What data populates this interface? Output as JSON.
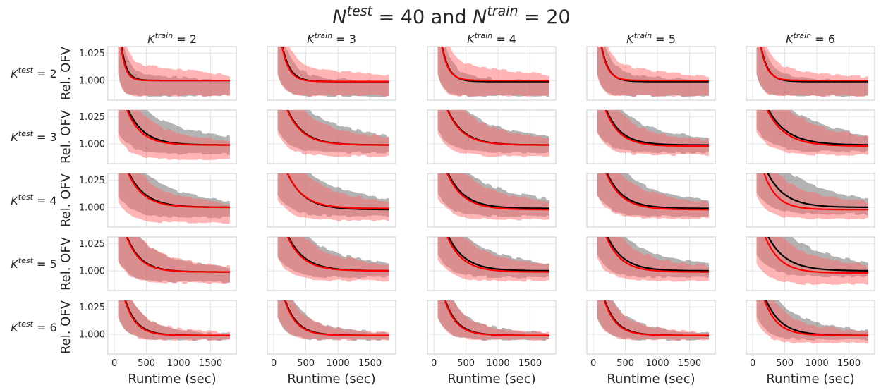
{
  "figure": {
    "suptitle_parts": [
      {
        "t": "N",
        "style": "italic"
      },
      {
        "t": "test",
        "sup": true,
        "style": "italic"
      },
      {
        "t": " = 40 and "
      },
      {
        "t": "N",
        "style": "italic"
      },
      {
        "t": "train",
        "sup": true,
        "style": "italic"
      },
      {
        "t": " = 20"
      }
    ]
  },
  "chart_data": {
    "type": "line",
    "layout": "grid 5x5 of small multiples, shared x and y axes",
    "columns": [
      {
        "base": "K",
        "sup": "train",
        "value": "= 2"
      },
      {
        "base": "K",
        "sup": "train",
        "value": "= 3"
      },
      {
        "base": "K",
        "sup": "train",
        "value": "= 4"
      },
      {
        "base": "K",
        "sup": "train",
        "value": "= 5"
      },
      {
        "base": "K",
        "sup": "train",
        "value": "= 6"
      }
    ],
    "rows": [
      {
        "base": "K",
        "sup": "test",
        "value": "= 2"
      },
      {
        "base": "K",
        "sup": "test",
        "value": "= 3"
      },
      {
        "base": "K",
        "sup": "test",
        "value": "= 4"
      },
      {
        "base": "K",
        "sup": "test",
        "value": "= 5"
      },
      {
        "base": "K",
        "sup": "test",
        "value": "= 6"
      }
    ],
    "xlabel": "Runtime (sec)",
    "ylabel": "Rel. OFV",
    "xlim": [
      -100,
      1900
    ],
    "ylim": [
      0.982,
      1.031
    ],
    "xticks": [
      0,
      500,
      1000,
      1500
    ],
    "yticks": [
      1.0,
      1.025
    ],
    "ytick_labels": [
      "1.000",
      "1.025"
    ],
    "grid": true,
    "series_styles": [
      {
        "color": "#000000",
        "band_color": "#808080",
        "band_opacity": 0.6
      },
      {
        "color": "#ff0000",
        "band_color": "#ff6b6b",
        "band_opacity": 0.5
      }
    ],
    "x_start": 60,
    "x_end": 1800,
    "panels": [
      [
        {
          "black": {
            "final": 1.0,
            "tau": 80
          },
          "red": {
            "final": 1.0,
            "tau": 70
          },
          "black_band": [
            0.982,
            1.012
          ],
          "red_band": [
            0.982,
            1.022
          ]
        },
        {
          "black": {
            "final": 0.999,
            "tau": 120
          },
          "red": {
            "final": 0.999,
            "tau": 110
          },
          "black_band": [
            0.982,
            1.01
          ],
          "red_band": [
            0.982,
            1.02
          ]
        },
        {
          "black": {
            "final": 0.999,
            "tau": 110
          },
          "red": {
            "final": 1.0,
            "tau": 100
          },
          "black_band": [
            0.982,
            1.01
          ],
          "red_band": [
            0.982,
            1.022
          ]
        },
        {
          "black": {
            "final": 0.999,
            "tau": 110
          },
          "red": {
            "final": 1.0,
            "tau": 100
          },
          "black_band": [
            0.982,
            1.012
          ],
          "red_band": [
            0.982,
            1.02
          ]
        },
        {
          "black": {
            "final": 0.999,
            "tau": 110
          },
          "red": {
            "final": 1.0,
            "tau": 100
          },
          "black_band": [
            0.982,
            1.01
          ],
          "red_band": [
            0.982,
            1.018
          ]
        }
      ],
      [
        {
          "black": {
            "final": 0.999,
            "tau": 250
          },
          "red": {
            "final": 0.999,
            "tau": 220
          },
          "black_band": [
            0.987,
            1.024
          ],
          "red_band": [
            0.982,
            1.018
          ]
        },
        {
          "black": {
            "final": 0.999,
            "tau": 250
          },
          "red": {
            "final": 0.999,
            "tau": 240
          },
          "black_band": [
            0.988,
            1.026
          ],
          "red_band": [
            0.985,
            1.022
          ]
        },
        {
          "black": {
            "final": 0.999,
            "tau": 250
          },
          "red": {
            "final": 0.999,
            "tau": 240
          },
          "black_band": [
            0.988,
            1.024
          ],
          "red_band": [
            0.985,
            1.022
          ]
        },
        {
          "black": {
            "final": 0.999,
            "tau": 230
          },
          "red": {
            "final": 0.998,
            "tau": 220
          },
          "black_band": [
            0.988,
            1.022
          ],
          "red_band": [
            0.986,
            1.018
          ]
        },
        {
          "black": {
            "final": 0.999,
            "tau": 300
          },
          "red": {
            "final": 0.998,
            "tau": 280
          },
          "black_band": [
            0.989,
            1.026
          ],
          "red_band": [
            0.986,
            1.024
          ]
        }
      ],
      [
        {
          "black": {
            "final": 1.0,
            "tau": 260
          },
          "red": {
            "final": 1.0,
            "tau": 240
          },
          "black_band": [
            0.987,
            1.022
          ],
          "red_band": [
            0.982,
            1.018
          ]
        },
        {
          "black": {
            "final": 0.998,
            "tau": 260
          },
          "red": {
            "final": 0.999,
            "tau": 250
          },
          "black_band": [
            0.988,
            1.026
          ],
          "red_band": [
            0.984,
            1.022
          ]
        },
        {
          "black": {
            "final": 0.999,
            "tau": 260
          },
          "red": {
            "final": 0.998,
            "tau": 250
          },
          "black_band": [
            0.988,
            1.026
          ],
          "red_band": [
            0.985,
            1.022
          ]
        },
        {
          "black": {
            "final": 0.999,
            "tau": 250
          },
          "red": {
            "final": 0.998,
            "tau": 240
          },
          "black_band": [
            0.988,
            1.024
          ],
          "red_band": [
            0.986,
            1.02
          ]
        },
        {
          "black": {
            "final": 1.0,
            "tau": 270
          },
          "red": {
            "final": 0.998,
            "tau": 200
          },
          "black_band": [
            0.99,
            1.027
          ],
          "red_band": [
            0.986,
            1.022
          ]
        }
      ],
      [
        {
          "black": {
            "final": 0.999,
            "tau": 220
          },
          "red": {
            "final": 0.999,
            "tau": 210
          },
          "black_band": [
            0.986,
            1.018
          ],
          "red_band": [
            0.985,
            1.02
          ]
        },
        {
          "black": {
            "final": 1.0,
            "tau": 260
          },
          "red": {
            "final": 1.0,
            "tau": 240
          },
          "black_band": [
            0.99,
            1.024
          ],
          "red_band": [
            0.987,
            1.022
          ]
        },
        {
          "black": {
            "final": 1.0,
            "tau": 260
          },
          "red": {
            "final": 0.999,
            "tau": 240
          },
          "black_band": [
            0.99,
            1.024
          ],
          "red_band": [
            0.987,
            1.022
          ]
        },
        {
          "black": {
            "final": 1.0,
            "tau": 250
          },
          "red": {
            "final": 0.999,
            "tau": 230
          },
          "black_band": [
            0.99,
            1.024
          ],
          "red_band": [
            0.987,
            1.02
          ]
        },
        {
          "black": {
            "final": 1.0,
            "tau": 280
          },
          "red": {
            "final": 0.998,
            "tau": 230
          },
          "black_band": [
            0.991,
            1.026
          ],
          "red_band": [
            0.984,
            1.022
          ]
        }
      ],
      [
        {
          "black": {
            "final": 0.999,
            "tau": 180
          },
          "red": {
            "final": 0.999,
            "tau": 170
          },
          "black_band": [
            0.991,
            1.012
          ],
          "red_band": [
            0.991,
            1.014
          ]
        },
        {
          "black": {
            "final": 0.999,
            "tau": 190
          },
          "red": {
            "final": 0.999,
            "tau": 180
          },
          "black_band": [
            0.991,
            1.014
          ],
          "red_band": [
            0.991,
            1.014
          ]
        },
        {
          "black": {
            "final": 0.999,
            "tau": 190
          },
          "red": {
            "final": 0.999,
            "tau": 180
          },
          "black_band": [
            0.991,
            1.014
          ],
          "red_band": [
            0.991,
            1.014
          ]
        },
        {
          "black": {
            "final": 0.999,
            "tau": 190
          },
          "red": {
            "final": 0.999,
            "tau": 180
          },
          "black_band": [
            0.991,
            1.014
          ],
          "red_band": [
            0.991,
            1.014
          ]
        },
        {
          "black": {
            "final": 0.999,
            "tau": 240
          },
          "red": {
            "final": 0.999,
            "tau": 200
          },
          "black_band": [
            0.991,
            1.018
          ],
          "red_band": [
            0.988,
            1.016
          ]
        }
      ]
    ]
  }
}
